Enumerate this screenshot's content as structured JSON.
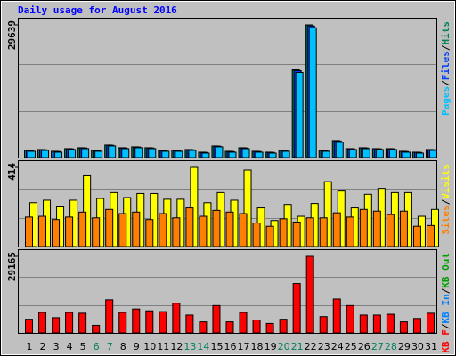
{
  "title": "Daily usage for August 2016",
  "legend_separator": "/",
  "chart_data": [
    {
      "type": "bar",
      "ylim": [
        0,
        29639
      ],
      "yticks": [
        29639
      ],
      "series": [
        {
          "name": "Hits",
          "color": "#00805c",
          "values": [
            1600,
            1800,
            1400,
            2000,
            2200,
            1600,
            2800,
            2200,
            2400,
            2200,
            1600,
            1600,
            1800,
            1200,
            2600,
            1400,
            2200,
            1400,
            1200,
            1600,
            19600,
            29639,
            1600,
            3800,
            2000,
            2200,
            2000,
            2000,
            1400,
            1200,
            1800
          ]
        },
        {
          "name": "Files",
          "color": "#0040ff",
          "values": [
            1550,
            1750,
            1350,
            1950,
            2150,
            1550,
            2750,
            2150,
            2350,
            2150,
            1550,
            1550,
            1750,
            1150,
            2550,
            1350,
            2150,
            1350,
            1150,
            1550,
            19400,
            29400,
            1550,
            3700,
            1950,
            2150,
            1950,
            1950,
            1350,
            1150,
            1750
          ]
        },
        {
          "name": "Pages",
          "color": "#00c0ff",
          "values": [
            1400,
            1600,
            1200,
            1800,
            2000,
            1400,
            2600,
            2000,
            2200,
            2000,
            1400,
            1400,
            1600,
            1000,
            2400,
            1200,
            2000,
            1200,
            1000,
            1400,
            19000,
            29000,
            1400,
            3400,
            1800,
            2000,
            1800,
            1800,
            1200,
            1000,
            1600
          ]
        }
      ]
    },
    {
      "type": "bar",
      "ylim": [
        0,
        414
      ],
      "yticks": [
        414
      ],
      "series": [
        {
          "name": "Visits",
          "color": "#ffff00",
          "values": [
            229,
            242,
            207,
            242,
            370,
            251,
            282,
            256,
            277,
            277,
            247,
            247,
            414,
            229,
            282,
            242,
            400,
            202,
            136,
            220,
            158,
            225,
            339,
            290,
            202,
            273,
            304,
            282,
            282,
            158,
            194
          ]
        },
        {
          "name": "Sites",
          "color": "#ff8000",
          "values": [
            154,
            158,
            141,
            154,
            180,
            150,
            194,
            172,
            180,
            141,
            172,
            150,
            202,
            158,
            189,
            180,
            172,
            123,
            106,
            145,
            128,
            150,
            150,
            176,
            154,
            194,
            185,
            167,
            185,
            106,
            110
          ]
        }
      ]
    },
    {
      "type": "bar",
      "ylim": [
        0,
        29165
      ],
      "yticks": [
        29165
      ],
      "categories": [
        "1",
        "2",
        "3",
        "4",
        "5",
        "6",
        "7",
        "8",
        "9",
        "10",
        "11",
        "12",
        "13",
        "14",
        "15",
        "16",
        "17",
        "18",
        "19",
        "20",
        "21",
        "22",
        "23",
        "24",
        "25",
        "26",
        "27",
        "28",
        "29",
        "30",
        "31"
      ],
      "category_colors": [
        "#000000",
        "#000000",
        "#000000",
        "#000000",
        "#000000",
        "#00805c",
        "#00805c",
        "#000000",
        "#000000",
        "#000000",
        "#000000",
        "#000000",
        "#00805c",
        "#00805c",
        "#000000",
        "#000000",
        "#000000",
        "#000000",
        "#000000",
        "#00805c",
        "#00805c",
        "#000000",
        "#000000",
        "#000000",
        "#000000",
        "#000000",
        "#00805c",
        "#00805c",
        "#000000",
        "#000000",
        "#000000"
      ],
      "series": [
        {
          "name": "KB F",
          "color": "#ff0000",
          "values": [
            5200,
            7800,
            5800,
            7800,
            7500,
            2900,
            12600,
            7800,
            9100,
            8400,
            8100,
            11300,
            6800,
            4200,
            10400,
            4200,
            7800,
            4900,
            3600,
            5200,
            18800,
            29165,
            6200,
            12900,
            10400,
            6800,
            6800,
            7100,
            4200,
            5500,
            7500
          ]
        }
      ],
      "legend_only": [
        {
          "name": "KB In",
          "color": "#0080ff"
        },
        {
          "name": "KB Out",
          "color": "#00a000"
        }
      ]
    }
  ]
}
